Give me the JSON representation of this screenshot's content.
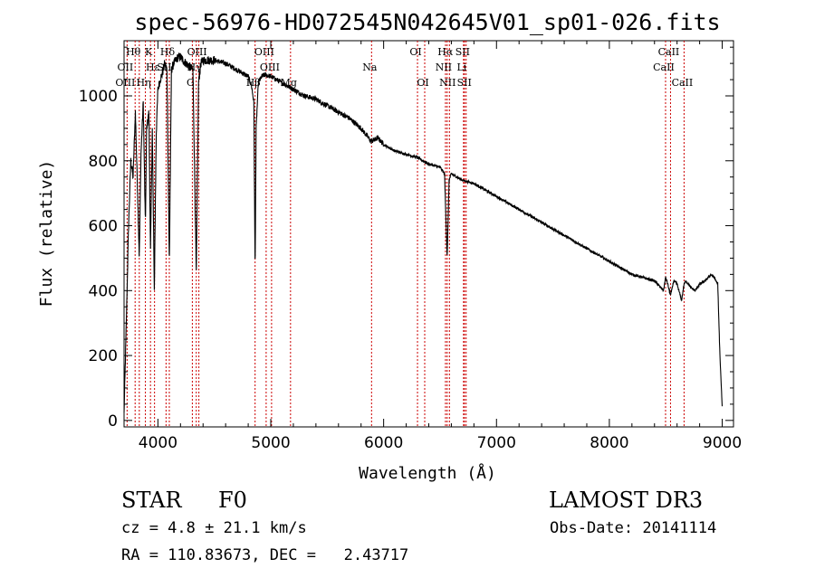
{
  "chart_data": {
    "type": "line",
    "title": "spec-56976-HD072545N042645V01_sp01-026.fits",
    "xlabel": "Wavelength (Å)",
    "ylabel": "Flux (relative)",
    "xlim": [
      3700,
      9100
    ],
    "ylim": [
      -20,
      1170
    ],
    "xticks": [
      4000,
      5000,
      6000,
      7000,
      8000,
      9000
    ],
    "yticks": [
      0,
      200,
      400,
      600,
      800,
      1000
    ],
    "series": [
      {
        "name": "flux",
        "color": "#000000",
        "x": [
          3700,
          3720,
          3740,
          3760,
          3780,
          3800,
          3820,
          3835,
          3850,
          3870,
          3889,
          3900,
          3920,
          3934,
          3950,
          3968,
          3985,
          4000,
          4020,
          4040,
          4060,
          4080,
          4101,
          4120,
          4140,
          4160,
          4180,
          4200,
          4220,
          4250,
          4280,
          4310,
          4340,
          4360,
          4380,
          4400,
          4450,
          4500,
          4550,
          4600,
          4650,
          4700,
          4750,
          4800,
          4830,
          4850,
          4861,
          4870,
          4890,
          4920,
          4950,
          5000,
          5100,
          5200,
          5300,
          5400,
          5500,
          5600,
          5700,
          5800,
          5890,
          5950,
          6000,
          6100,
          6200,
          6300,
          6400,
          6500,
          6540,
          6563,
          6580,
          6600,
          6700,
          6800,
          6900,
          7000,
          7100,
          7200,
          7300,
          7400,
          7500,
          7600,
          7700,
          7800,
          7900,
          8000,
          8100,
          8200,
          8300,
          8400,
          8480,
          8498,
          8510,
          8542,
          8570,
          8600,
          8640,
          8662,
          8680,
          8720,
          8760,
          8800,
          8850,
          8900,
          8930,
          8960,
          8980,
          9000
        ],
        "y": [
          20,
          300,
          600,
          800,
          750,
          950,
          700,
          500,
          820,
          980,
          600,
          900,
          950,
          520,
          900,
          400,
          880,
          1020,
          1050,
          1070,
          1100,
          1080,
          480,
          1080,
          1100,
          1110,
          1120,
          1120,
          1110,
          1100,
          1090,
          1080,
          450,
          1040,
          1100,
          1110,
          1110,
          1110,
          1105,
          1100,
          1090,
          1080,
          1070,
          1060,
          1030,
          980,
          450,
          900,
          1040,
          1060,
          1065,
          1060,
          1040,
          1020,
          1000,
          990,
          970,
          950,
          930,
          900,
          860,
          870,
          850,
          830,
          820,
          810,
          790,
          780,
          760,
          500,
          740,
          760,
          740,
          730,
          710,
          690,
          670,
          650,
          630,
          610,
          590,
          570,
          550,
          530,
          510,
          490,
          470,
          450,
          440,
          430,
          400,
          440,
          430,
          385,
          430,
          420,
          370,
          420,
          430,
          410,
          400,
          420,
          430,
          450,
          440,
          420,
          200,
          40
        ]
      }
    ],
    "line_labels": [
      {
        "text": "Hθ",
        "row": 1,
        "wl": 3798
      },
      {
        "text": "K",
        "row": 1,
        "wl": 3934
      },
      {
        "text": "Hδ",
        "row": 1,
        "wl": 4101
      },
      {
        "text": "OIII",
        "row": 1,
        "wl": 4363
      },
      {
        "text": "OIII",
        "row": 1,
        "wl": 4959
      },
      {
        "text": "OI",
        "row": 1,
        "wl": 6300
      },
      {
        "text": "Hα",
        "row": 1,
        "wl": 6563
      },
      {
        "text": "SII",
        "row": 1,
        "wl": 6716
      },
      {
        "text": "CaII",
        "row": 1,
        "wl": 8542
      },
      {
        "text": "OII",
        "row": 2,
        "wl": 3727
      },
      {
        "text": "Hε",
        "row": 2,
        "wl": 3970
      },
      {
        "text": "SII",
        "row": 2,
        "wl": 4072
      },
      {
        "text": "Hγ",
        "row": 2,
        "wl": 4340
      },
      {
        "text": "OIII",
        "row": 2,
        "wl": 5007
      },
      {
        "text": "Na",
        "row": 2,
        "wl": 5893
      },
      {
        "text": "NII",
        "row": 2,
        "wl": 6548
      },
      {
        "text": "Li",
        "row": 2,
        "wl": 6708
      },
      {
        "text": "CaII",
        "row": 2,
        "wl": 8498
      },
      {
        "text": "OIII",
        "row": 3,
        "wl": 3727
      },
      {
        "text": "Hη",
        "row": 3,
        "wl": 3889
      },
      {
        "text": "G",
        "row": 3,
        "wl": 4305
      },
      {
        "text": "Hβ",
        "row": 3,
        "wl": 4861
      },
      {
        "text": "Mg",
        "row": 3,
        "wl": 5175
      },
      {
        "text": "OI",
        "row": 3,
        "wl": 6364
      },
      {
        "text": "NII",
        "row": 3,
        "wl": 6583
      },
      {
        "text": "SII",
        "row": 3,
        "wl": 6731
      },
      {
        "text": "CaII",
        "row": 3,
        "wl": 8662
      }
    ],
    "line_marks": [
      3727,
      3798,
      3835,
      3889,
      3934,
      3970,
      4072,
      4101,
      4305,
      4340,
      4363,
      4861,
      4959,
      5007,
      5175,
      5893,
      6300,
      6364,
      6548,
      6563,
      6583,
      6708,
      6716,
      6731,
      8498,
      8542,
      8662
    ],
    "line_mark_color": "#cc0000"
  },
  "info": {
    "object_type": "STAR",
    "subclass": "F0",
    "survey": "LAMOST DR3",
    "redshift": "cz = 4.8 ± 21.1 km/s",
    "obs_date": "Obs-Date: 20141114",
    "coords": "RA = 110.83673, DEC =   2.43717"
  }
}
